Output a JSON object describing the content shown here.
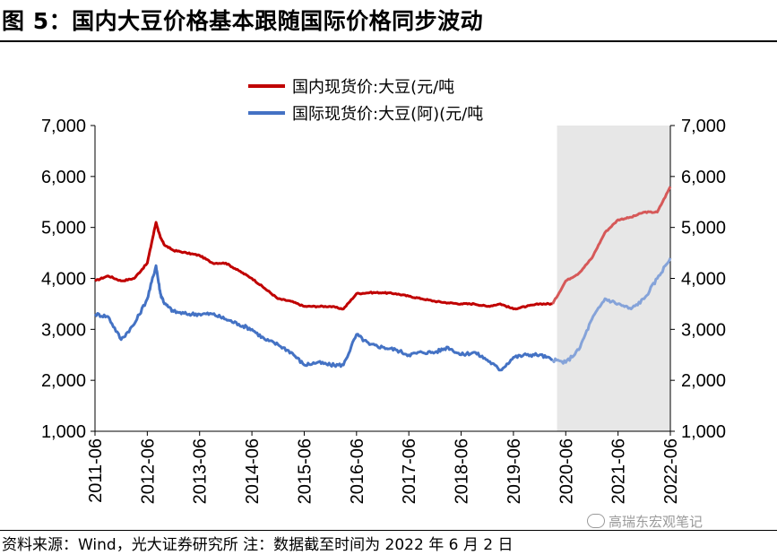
{
  "title": "图 5：国内大豆价格基本跟随国际价格同步波动",
  "source": "资料来源：Wind，光大证券研究所  注：数据截至时间为 2022 年 6 月 2 日",
  "watermark": "高瑞东宏观笔记",
  "chart_data": {
    "type": "line",
    "title": "图 5：国内大豆价格基本跟随国际价格同步波动",
    "ylim": [
      1000,
      7000
    ],
    "y_ticks": [
      "1,000",
      "2,000",
      "3,000",
      "4,000",
      "5,000",
      "6,000",
      "7,000"
    ],
    "x_ticks": [
      "2011-06",
      "2012-06",
      "2013-06",
      "2014-06",
      "2015-06",
      "2016-06",
      "2017-06",
      "2018-06",
      "2019-06",
      "2020-06",
      "2021-06",
      "2022-06"
    ],
    "x_range": [
      "2011-06",
      "2022-06"
    ],
    "highlight_region": {
      "from": "2020-04",
      "to": "2022-06",
      "color": "#e7e7e7"
    },
    "legend_position": "top",
    "series": [
      {
        "name": "国内现货价:大豆(元/吨",
        "color": "#c00000",
        "x": [
          "2011-06",
          "2011-09",
          "2011-12",
          "2012-03",
          "2012-06",
          "2012-08",
          "2012-09",
          "2012-10",
          "2012-12",
          "2013-03",
          "2013-06",
          "2013-09",
          "2013-12",
          "2014-03",
          "2014-06",
          "2014-09",
          "2014-12",
          "2015-03",
          "2015-06",
          "2015-09",
          "2015-12",
          "2016-03",
          "2016-06",
          "2016-09",
          "2016-12",
          "2017-03",
          "2017-06",
          "2017-09",
          "2017-12",
          "2018-03",
          "2018-06",
          "2018-09",
          "2018-12",
          "2019-03",
          "2019-06",
          "2019-09",
          "2019-12",
          "2020-03",
          "2020-06",
          "2020-09",
          "2020-12",
          "2021-03",
          "2021-06",
          "2021-09",
          "2021-12",
          "2022-03",
          "2022-06"
        ],
        "values": [
          3950,
          4050,
          3950,
          4000,
          4300,
          5100,
          4800,
          4650,
          4550,
          4500,
          4450,
          4300,
          4300,
          4150,
          4000,
          3800,
          3600,
          3550,
          3450,
          3450,
          3450,
          3400,
          3700,
          3720,
          3720,
          3700,
          3650,
          3600,
          3550,
          3520,
          3500,
          3500,
          3450,
          3500,
          3400,
          3450,
          3500,
          3500,
          3950,
          4100,
          4400,
          4900,
          5150,
          5200,
          5300,
          5300,
          5800
        ],
        "highlight_index_from": 37
      },
      {
        "name": "国际现货价:大豆(阿)(元/吨",
        "color": "#4472c4",
        "x": [
          "2011-06",
          "2011-09",
          "2011-12",
          "2012-03",
          "2012-06",
          "2012-08",
          "2012-09",
          "2012-10",
          "2012-12",
          "2013-03",
          "2013-06",
          "2013-09",
          "2013-12",
          "2014-03",
          "2014-06",
          "2014-09",
          "2014-12",
          "2015-03",
          "2015-06",
          "2015-09",
          "2015-12",
          "2016-03",
          "2016-06",
          "2016-09",
          "2016-12",
          "2017-03",
          "2017-06",
          "2017-09",
          "2017-12",
          "2018-03",
          "2018-06",
          "2018-09",
          "2018-12",
          "2019-03",
          "2019-06",
          "2019-09",
          "2019-12",
          "2020-03",
          "2020-06",
          "2020-09",
          "2020-12",
          "2021-03",
          "2021-06",
          "2021-09",
          "2021-12",
          "2022-03",
          "2022-06"
        ],
        "values": [
          3300,
          3250,
          2800,
          3100,
          3600,
          4250,
          3700,
          3500,
          3350,
          3300,
          3300,
          3300,
          3200,
          3100,
          3000,
          2800,
          2700,
          2550,
          2300,
          2350,
          2300,
          2300,
          2900,
          2700,
          2650,
          2600,
          2500,
          2550,
          2550,
          2650,
          2500,
          2550,
          2400,
          2200,
          2450,
          2500,
          2500,
          2400,
          2350,
          2600,
          3200,
          3600,
          3500,
          3400,
          3600,
          4000,
          4400
        ],
        "highlight_index_from": 37
      }
    ]
  }
}
